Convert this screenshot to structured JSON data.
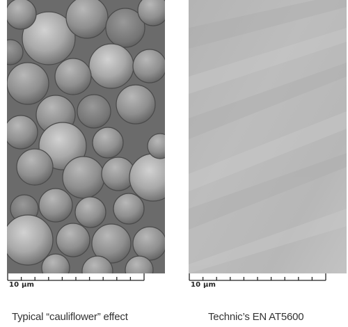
{
  "panels": [
    {
      "scale_label": "10 µm",
      "caption": "Typical “cauliflower” effect"
    },
    {
      "scale_label": "10 µm",
      "caption": "Technic’s EN AT5600"
    }
  ]
}
